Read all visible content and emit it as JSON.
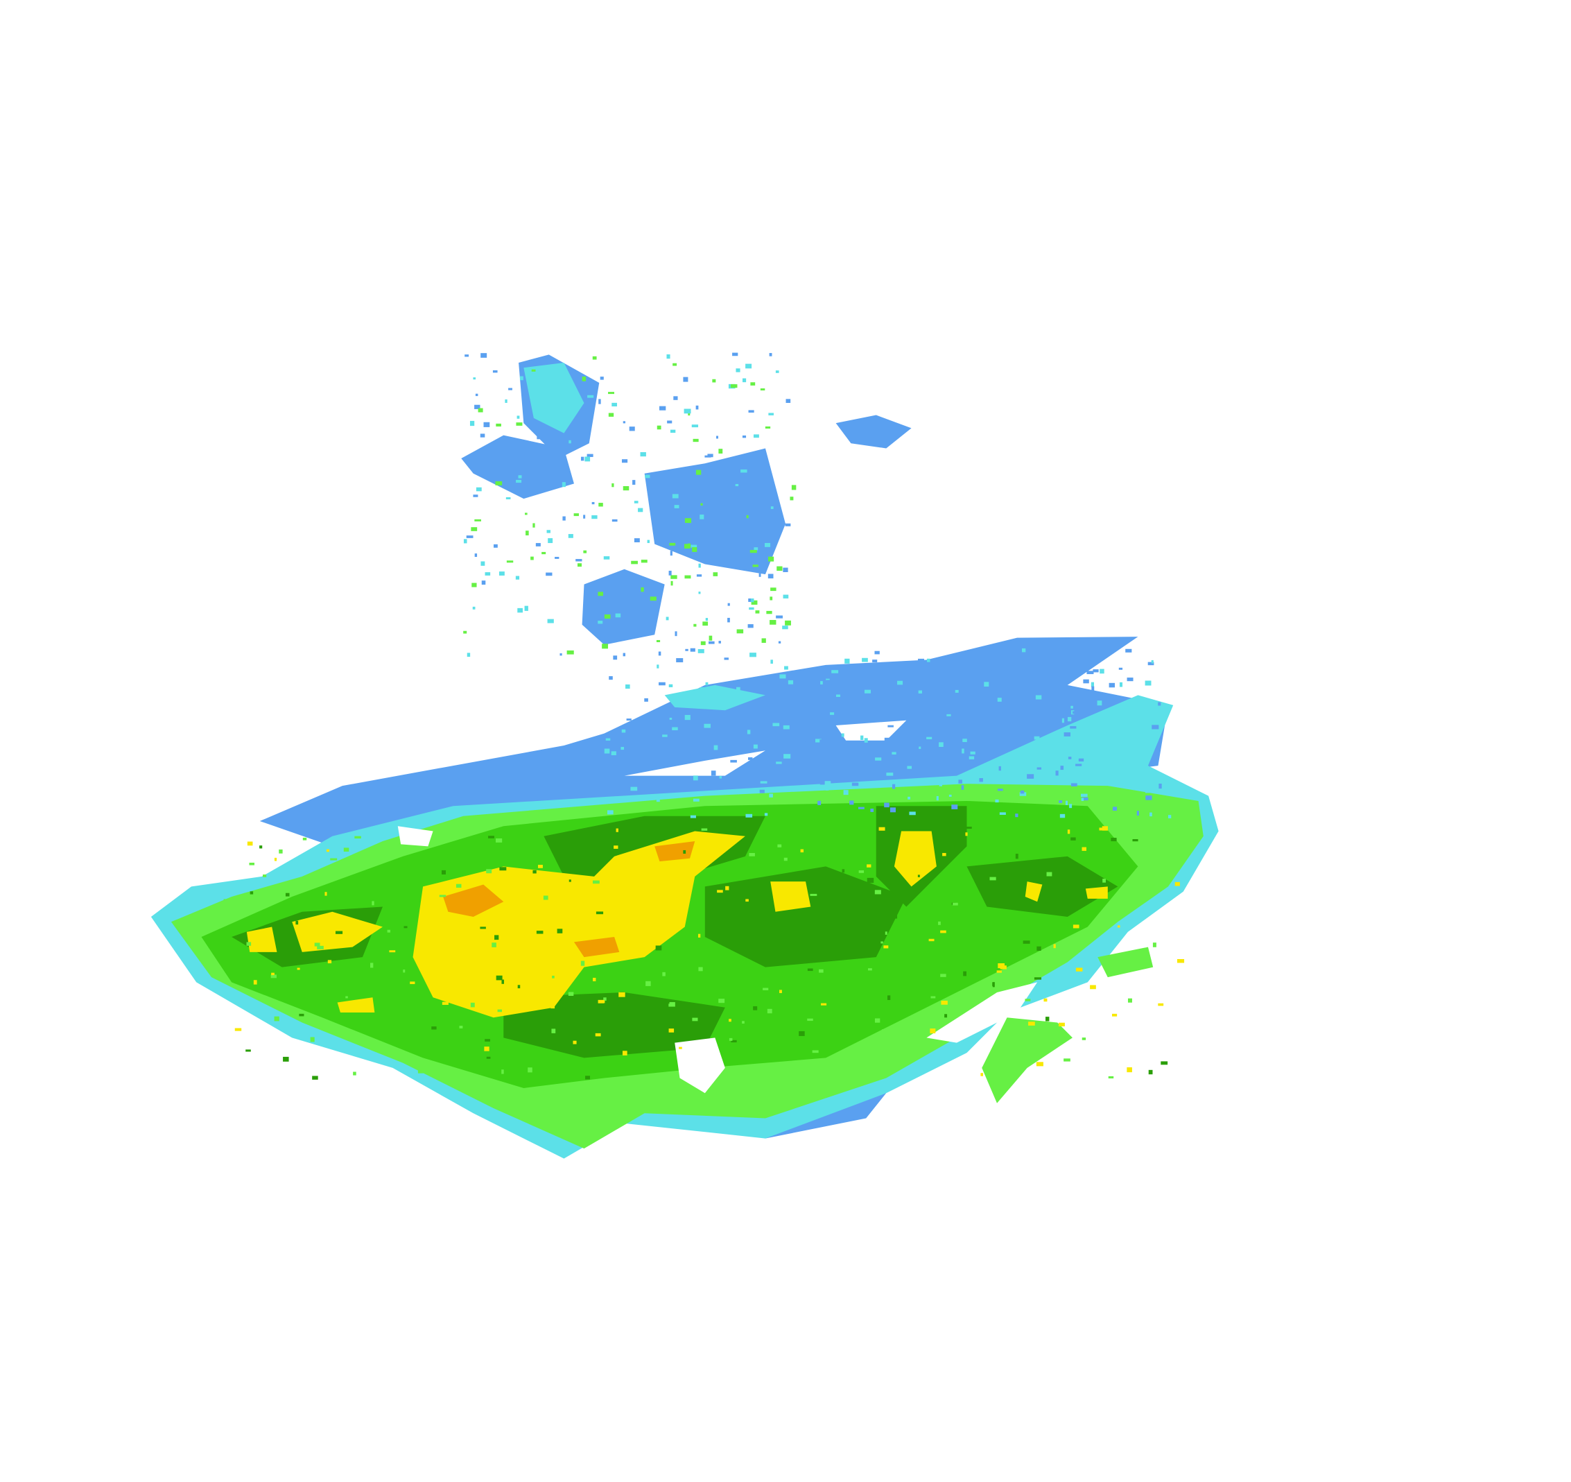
{
  "map": {
    "type": "weather-radar-reflectivity",
    "background": "#ffffff",
    "palette": {
      "light_blue": "#5aa0f0",
      "cyan": "#5ce0e8",
      "light_green": "#66f044",
      "green": "#3cd214",
      "dark_green": "#2a9e08",
      "yellow": "#f8e800",
      "orange": "#f0a000"
    }
  }
}
